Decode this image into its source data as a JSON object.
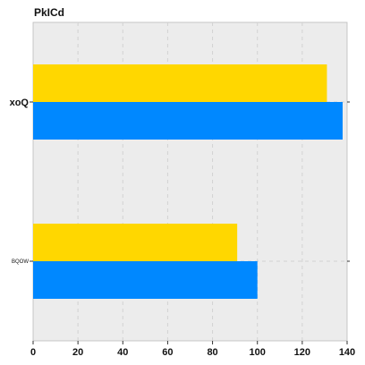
{
  "chart_data": {
    "type": "bar",
    "orientation": "horizontal",
    "title": "PkICd",
    "categories": [
      "xoQ",
      "BQOW"
    ],
    "series": [
      {
        "color": "#ffd700",
        "values": [
          131,
          91
        ]
      },
      {
        "color": "#0088ff",
        "values": [
          138,
          100
        ]
      }
    ],
    "xlim": [
      0,
      140
    ],
    "xticks": [
      "0",
      "20",
      "40",
      "60",
      "80",
      "100",
      "120",
      "140"
    ],
    "grid": true,
    "plot_background": "#ececec"
  }
}
